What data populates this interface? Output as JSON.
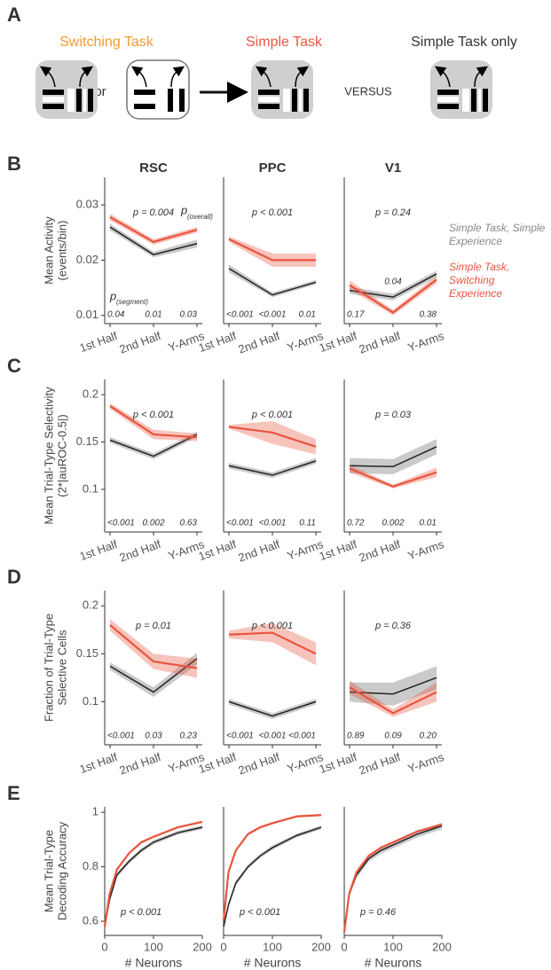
{
  "panel_a": {
    "label": "A",
    "switching": "Switching Task",
    "or": "or",
    "simple": "Simple Task",
    "versus": "VERSUS",
    "simple_only": "Simple Task only"
  },
  "chart_data": [
    {
      "type": "line",
      "panel": "B",
      "title": "RSC",
      "ylabel": [
        "Mean Activity",
        "(events/bin)"
      ],
      "categories": [
        "1st Half",
        "2nd Half",
        "Y-Arms"
      ],
      "ylim": [
        0.0085,
        0.035
      ],
      "yticks": [
        0.01,
        0.02,
        0.03
      ],
      "series": [
        {
          "color": "#666666",
          "values": [
            0.026,
            0.021,
            0.023
          ],
          "error": [
            0.0006,
            0.0005,
            0.0007
          ]
        },
        {
          "color": "#e8553f",
          "values": [
            0.0278,
            0.0233,
            0.0255
          ],
          "error": [
            0.0006,
            0.0005,
            0.0005
          ]
        }
      ],
      "p_overall": "p = 0.004",
      "overall_key": "p",
      "overall_key_sub": "(overall)",
      "segment_key": "p",
      "segment_key_sub": "(segment)",
      "segment_p": [
        "0.04",
        "0.01",
        "0.03"
      ]
    },
    {
      "type": "line",
      "title": "PPC",
      "categories": [
        "1st Half",
        "2nd Half",
        "Y-Arms"
      ],
      "ylim": [
        0.0085,
        0.035
      ],
      "series": [
        {
          "color": "#666666",
          "values": [
            0.0185,
            0.0137,
            0.016
          ],
          "error": [
            0.0007,
            0.0004,
            0.0004
          ]
        },
        {
          "color": "#e8553f",
          "values": [
            0.0238,
            0.02,
            0.02
          ],
          "error": [
            0.0005,
            0.0012,
            0.0012
          ]
        }
      ],
      "p_overall": "p < 0.001",
      "segment_p": [
        "<0.001",
        "<0.001",
        "0.01"
      ]
    },
    {
      "type": "line",
      "title": "V1",
      "categories": [
        "1st Half",
        "2nd Half",
        "Y-Arms"
      ],
      "ylim": [
        0.0085,
        0.035
      ],
      "series": [
        {
          "name": "Simple Task, Simple Experience",
          "color": "#666666",
          "values": [
            0.0145,
            0.0133,
            0.0175
          ],
          "error": [
            0.0006,
            0.0006,
            0.0006
          ]
        },
        {
          "name": "Simple Task, Switching Experience",
          "color": "#e8553f",
          "values": [
            0.0155,
            0.0105,
            0.0165
          ],
          "error": [
            0.0008,
            0.0005,
            0.0007
          ]
        }
      ],
      "p_overall": "p = 0.24",
      "segment_p": [
        "0.17",
        "0.04",
        "0.38"
      ]
    },
    {
      "type": "line",
      "panel": "C",
      "ylabel": [
        "Mean Trial-Type Selectivity",
        "(2*|auROC-0.5|)"
      ],
      "categories": [
        "1st Half",
        "2nd Half",
        "Y-Arms"
      ],
      "ylim": [
        0.055,
        0.216
      ],
      "yticks": [
        0.1,
        0.15,
        0.2
      ],
      "series": [
        {
          "color": "#666666",
          "values": [
            0.152,
            0.135,
            0.158
          ],
          "error": [
            0.003,
            0.003,
            0.003
          ]
        },
        {
          "color": "#e8553f",
          "values": [
            0.188,
            0.158,
            0.155
          ],
          "error": [
            0.003,
            0.005,
            0.004
          ]
        }
      ],
      "p_overall": "p < 0.001",
      "segment_p": [
        "<0.001",
        "0.002",
        "0.63"
      ]
    },
    {
      "type": "line",
      "categories": [
        "1st Half",
        "2nd Half",
        "Y-Arms"
      ],
      "ylim": [
        0.055,
        0.216
      ],
      "series": [
        {
          "color": "#666666",
          "values": [
            0.125,
            0.115,
            0.13
          ],
          "error": [
            0.003,
            0.003,
            0.003
          ]
        },
        {
          "color": "#e8553f",
          "values": [
            0.166,
            0.16,
            0.145
          ],
          "error": [
            0.002,
            0.012,
            0.008
          ]
        }
      ],
      "p_overall": "p < 0.001",
      "segment_p": [
        "<0.001",
        "<0.001",
        "0.11"
      ]
    },
    {
      "type": "line",
      "categories": [
        "1st Half",
        "2nd Half",
        "Y-Arms"
      ],
      "ylim": [
        0.055,
        0.216
      ],
      "series": [
        {
          "color": "#666666",
          "values": [
            0.125,
            0.124,
            0.145
          ],
          "error": [
            0.008,
            0.008,
            0.008
          ]
        },
        {
          "color": "#e8553f",
          "values": [
            0.122,
            0.103,
            0.118
          ],
          "error": [
            0.004,
            0.002,
            0.005
          ]
        }
      ],
      "p_overall": "p = 0.03",
      "segment_p": [
        "0.72",
        "0.002",
        "0.01"
      ]
    },
    {
      "type": "line",
      "panel": "D",
      "ylabel": [
        "Fraction of Trial-Type",
        "Selective Cells"
      ],
      "categories": [
        "1st Half",
        "2nd Half",
        "Y-Arms"
      ],
      "ylim": [
        0.055,
        0.216
      ],
      "yticks": [
        0.1,
        0.15,
        0.2
      ],
      "series": [
        {
          "color": "#666666",
          "values": [
            0.137,
            0.11,
            0.145
          ],
          "error": [
            0.004,
            0.005,
            0.006
          ]
        },
        {
          "color": "#e8553f",
          "values": [
            0.18,
            0.142,
            0.135
          ],
          "error": [
            0.006,
            0.008,
            0.01
          ]
        }
      ],
      "p_overall": "p = 0.01",
      "segment_p": [
        "<0.001",
        "0.03",
        "0.23"
      ]
    },
    {
      "type": "line",
      "categories": [
        "1st Half",
        "2nd Half",
        "Y-Arms"
      ],
      "ylim": [
        0.055,
        0.216
      ],
      "series": [
        {
          "color": "#666666",
          "values": [
            0.1,
            0.085,
            0.1
          ],
          "error": [
            0.003,
            0.003,
            0.003
          ]
        },
        {
          "color": "#e8553f",
          "values": [
            0.17,
            0.172,
            0.15
          ],
          "error": [
            0.004,
            0.01,
            0.012
          ]
        }
      ],
      "p_overall": "p < 0.001",
      "segment_p": [
        "<0.001",
        "<0.001",
        "<0.001"
      ]
    },
    {
      "type": "line",
      "categories": [
        "1st Half",
        "2nd Half",
        "Y-Arms"
      ],
      "ylim": [
        0.055,
        0.216
      ],
      "series": [
        {
          "color": "#666666",
          "values": [
            0.11,
            0.108,
            0.125
          ],
          "error": [
            0.01,
            0.012,
            0.012
          ]
        },
        {
          "color": "#e8553f",
          "values": [
            0.115,
            0.088,
            0.11
          ],
          "error": [
            0.007,
            0.004,
            0.01
          ]
        }
      ],
      "p_overall": "p = 0.36",
      "segment_p": [
        "0.89",
        "0.09",
        "0.20"
      ]
    },
    {
      "type": "line",
      "panel": "E",
      "ylabel": [
        "Mean Trial-Type",
        "Decoding Accuracy"
      ],
      "xlabel": "# Neurons",
      "x": [
        0,
        10,
        25,
        50,
        75,
        100,
        150,
        200
      ],
      "xlim": [
        0,
        200
      ],
      "xticks": [
        0,
        100,
        200
      ],
      "ylim": [
        0.548,
        1.02
      ],
      "yticks": [
        0.6,
        0.8,
        1
      ],
      "series": [
        {
          "color": "#666666",
          "values": [
            0.58,
            0.68,
            0.77,
            0.82,
            0.86,
            0.89,
            0.925,
            0.945
          ],
          "error": [
            0.01,
            0.01,
            0.009,
            0.008,
            0.008,
            0.008,
            0.007,
            0.007
          ]
        },
        {
          "color": "#e8553f",
          "values": [
            0.58,
            0.7,
            0.79,
            0.85,
            0.89,
            0.91,
            0.945,
            0.965
          ],
          "error": [
            0.01,
            0.008,
            0.006,
            0.005,
            0.005,
            0.004,
            0.004,
            0.004
          ]
        }
      ],
      "p_overall": "p < 0.001"
    },
    {
      "type": "line",
      "xlabel": "# Neurons",
      "x": [
        0,
        10,
        25,
        50,
        75,
        100,
        150,
        200
      ],
      "xlim": [
        0,
        200
      ],
      "xticks": [
        0,
        100,
        200
      ],
      "ylim": [
        0.548,
        1.02
      ],
      "series": [
        {
          "color": "#666666",
          "values": [
            0.58,
            0.66,
            0.74,
            0.8,
            0.84,
            0.87,
            0.915,
            0.945
          ],
          "error": [
            0.01,
            0.01,
            0.009,
            0.008,
            0.008,
            0.008,
            0.007,
            0.007
          ]
        },
        {
          "color": "#e8553f",
          "values": [
            0.6,
            0.78,
            0.86,
            0.92,
            0.945,
            0.96,
            0.985,
            0.99
          ],
          "error": [
            0.01,
            0.008,
            0.006,
            0.005,
            0.005,
            0.004,
            0.004,
            0.004
          ]
        }
      ],
      "p_overall": "p < 0.001"
    },
    {
      "type": "line",
      "xlabel": "# Neurons",
      "x": [
        0,
        10,
        25,
        50,
        75,
        100,
        150,
        200
      ],
      "xlim": [
        0,
        200
      ],
      "xticks": [
        0,
        100,
        200
      ],
      "ylim": [
        0.548,
        1.02
      ],
      "series": [
        {
          "color": "#666666",
          "values": [
            0.56,
            0.7,
            0.77,
            0.83,
            0.86,
            0.88,
            0.92,
            0.95
          ],
          "error": [
            0.012,
            0.012,
            0.012,
            0.012,
            0.012,
            0.012,
            0.012,
            0.012
          ]
        },
        {
          "color": "#e8553f",
          "values": [
            0.56,
            0.7,
            0.78,
            0.84,
            0.87,
            0.89,
            0.93,
            0.955
          ],
          "error": [
            0.01,
            0.008,
            0.006,
            0.005,
            0.005,
            0.004,
            0.004,
            0.004
          ]
        }
      ],
      "p_overall": "p = 0.46"
    }
  ]
}
